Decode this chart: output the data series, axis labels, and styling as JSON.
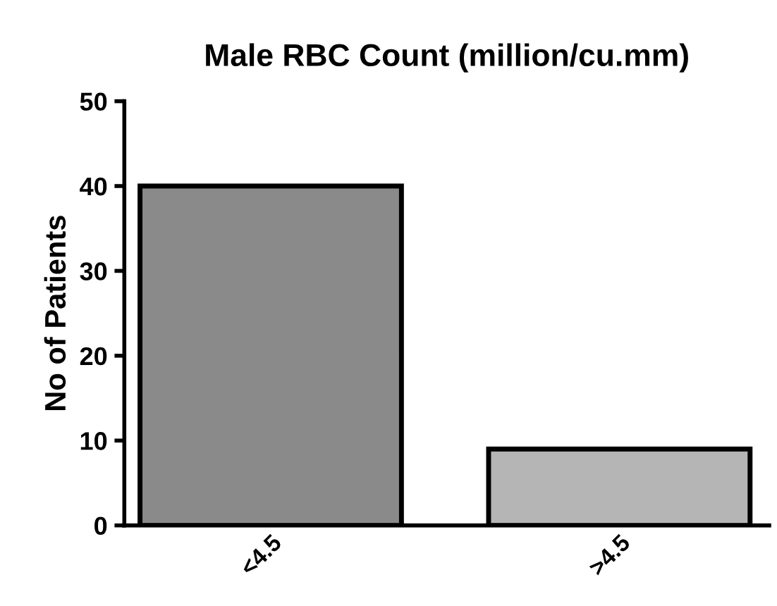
{
  "chart_data": {
    "type": "bar",
    "title": "Male RBC Count (million/cu.mm)",
    "ylabel": "No of Patients",
    "categories": [
      "<4.5",
      ">4.5"
    ],
    "values": [
      40,
      9
    ],
    "colors": [
      "#8a8a8a",
      "#b5b5b5"
    ],
    "ylim": [
      0,
      50
    ],
    "yticks": [
      0,
      10,
      20,
      30,
      40,
      50
    ],
    "grid": false,
    "legend": false
  }
}
